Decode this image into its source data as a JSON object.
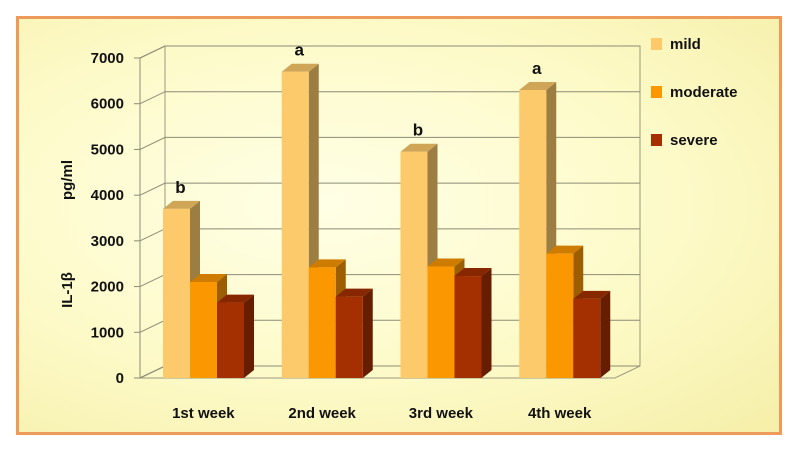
{
  "chart_data": {
    "type": "bar",
    "title": "",
    "xlabel": "",
    "ylabel_line1": "IL-1β",
    "ylabel_line2": "pg/ml",
    "categories": [
      "1st week",
      "2nd week",
      "3rd week",
      "4th week"
    ],
    "ylim": [
      0,
      7000
    ],
    "yticks": [
      "0",
      "1000",
      "2000",
      "3000",
      "4000",
      "5000",
      "6000",
      "7000"
    ],
    "grid": true,
    "legend_position": "right",
    "series": [
      {
        "name": "mild",
        "values": [
          3700,
          6700,
          4950,
          6300
        ],
        "color": "#fcc96b",
        "annotations": [
          "b",
          "a",
          "b",
          "a"
        ]
      },
      {
        "name": "moderate",
        "values": [
          2100,
          2420,
          2440,
          2720
        ],
        "color": "#fb9700",
        "annotations": [
          "",
          "",
          "",
          ""
        ]
      },
      {
        "name": "severe",
        "values": [
          1650,
          1780,
          2230,
          1730
        ],
        "color": "#a42f00",
        "annotations": [
          "",
          "",
          "",
          ""
        ]
      }
    ]
  }
}
